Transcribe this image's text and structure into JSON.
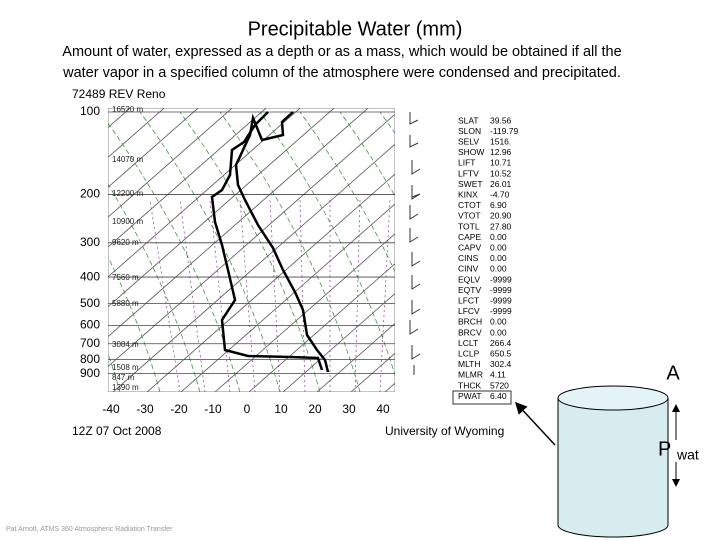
{
  "title": "Precipitable Water (mm)",
  "subtitle_lines": [
    "Amount of water, expressed as a depth or as a mass, which would be obtained if all the",
    "water vapor in a specified column of the atmosphere were condensed and precipitated."
  ],
  "sounding": {
    "station": "72489 REV Reno",
    "pressure_labels": [
      100,
      200,
      300,
      400,
      500,
      600,
      700,
      800,
      900
    ],
    "temperature_labels": [
      -40,
      -30,
      -20,
      -10,
      0,
      10,
      20,
      30,
      40
    ],
    "height_labels": [
      "16520 m",
      "14070 m",
      "12200 m",
      "10900 m",
      "9620 m",
      "7560 m",
      "5880 m",
      "3084 m",
      "1508 m",
      "847 m",
      "1390 m"
    ],
    "date": "12Z 07 Oct 2008",
    "credit": "University of Wyoming",
    "indices": [
      [
        "SLAT",
        "39.56"
      ],
      [
        "SLON",
        "-119.79"
      ],
      [
        "SELV",
        "1516."
      ],
      [
        "SHOW",
        "12.96"
      ],
      [
        "LIFT",
        "10.71"
      ],
      [
        "LFTV",
        "10.52"
      ],
      [
        "SWET",
        "26.01"
      ],
      [
        "KINX",
        "-4.70"
      ],
      [
        "CTOT",
        "6.90"
      ],
      [
        "VTOT",
        "20.90"
      ],
      [
        "TOTL",
        "27.80"
      ],
      [
        "CAPE",
        "0.00"
      ],
      [
        "CAPV",
        "0.00"
      ],
      [
        "CINS",
        "0.00"
      ],
      [
        "CINV",
        "0.00"
      ],
      [
        "EQLV",
        "-9999"
      ],
      [
        "EQTV",
        "-9999"
      ],
      [
        "LFCT",
        "-9999"
      ],
      [
        "LFCV",
        "-9999"
      ],
      [
        "BRCH",
        "0.00"
      ],
      [
        "BRCV",
        "0.00"
      ],
      [
        "LCLT",
        "266.4"
      ],
      [
        "LCLP",
        "650.5"
      ],
      [
        "MLTH",
        "302.4"
      ],
      [
        "MLMR",
        "4.11"
      ],
      [
        "THCK",
        "5720"
      ],
      [
        "PWAT",
        "6.40"
      ]
    ]
  },
  "cylinder": {
    "top_label": "A",
    "height_label": "P",
    "height_subscript": "wat"
  },
  "footer": "Pat Arnott, ATMS 360 Atmospheric Radiation Transfer"
}
